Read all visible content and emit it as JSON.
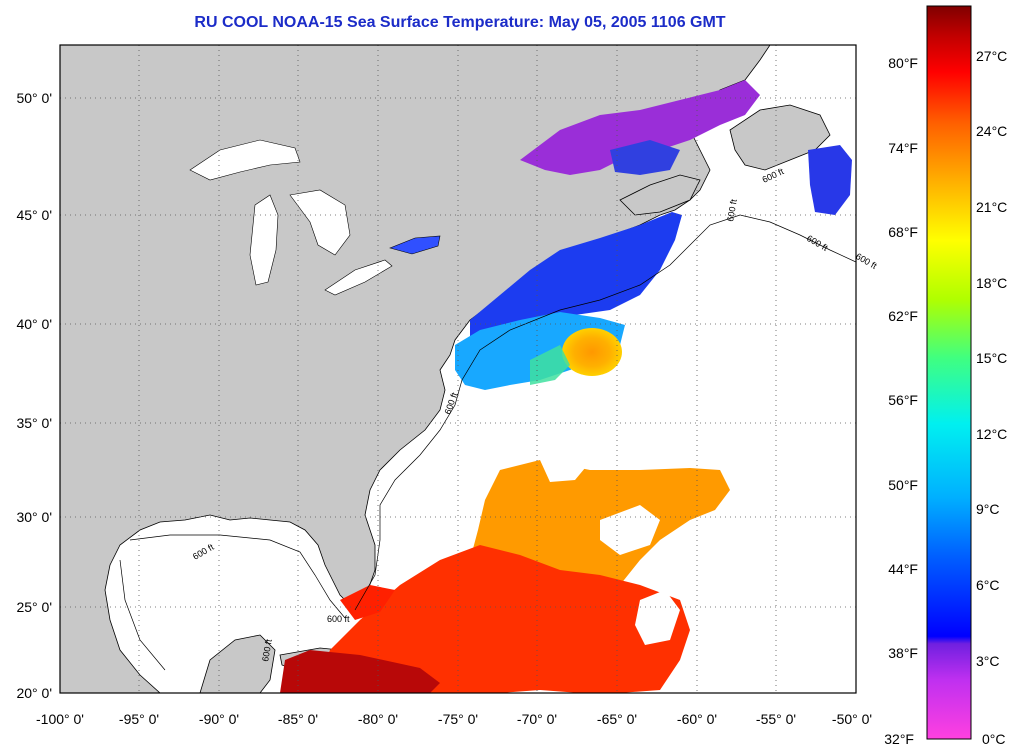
{
  "title": "RU COOL  NOAA-15  Sea Surface Temperature:  May 05, 2005 1106 GMT",
  "map": {
    "lon_range": [
      -100,
      -50
    ],
    "lat_range": [
      20,
      52.3
    ],
    "lon_ticks": [
      "-100° 0'",
      "-95° 0'",
      "-90° 0'",
      "-85° 0'",
      "-80° 0'",
      "-75° 0'",
      "-70° 0'",
      "-65° 0'",
      "-60° 0'",
      "-55° 0'",
      "-50° 0'"
    ],
    "lat_ticks": [
      "20° 0'",
      "25° 0'",
      "30° 0'",
      "35° 0'",
      "40° 0'",
      "45° 0'",
      "50° 0'"
    ],
    "land_color": "#c8c8c8",
    "ocean_nodata_color": "#ffffff",
    "isobath_labels": [
      "600 ft",
      "600 ft",
      "600 ft",
      "600 ft",
      "600 ft",
      "600 ft",
      "600 ft",
      "600 ft"
    ],
    "grid": "dotted"
  },
  "colorbar": {
    "fahrenheit_labels": [
      "80°F",
      "74°F",
      "68°F",
      "62°F",
      "56°F",
      "50°F",
      "44°F",
      "38°F",
      "32°F"
    ],
    "celsius_labels": [
      "27°C",
      "24°C",
      "21°C",
      "18°C",
      "15°C",
      "12°C",
      "9°C",
      "6°C",
      "3°C",
      "0°C"
    ],
    "colors": [
      "#ff40e0",
      "#c030f0",
      "#7020e0",
      "#0000ff",
      "#0060ff",
      "#00b0ff",
      "#00f0f0",
      "#40ff80",
      "#b0ff00",
      "#ffff00",
      "#ffb000",
      "#ff6000",
      "#ff0000",
      "#c00000",
      "#800000"
    ]
  }
}
